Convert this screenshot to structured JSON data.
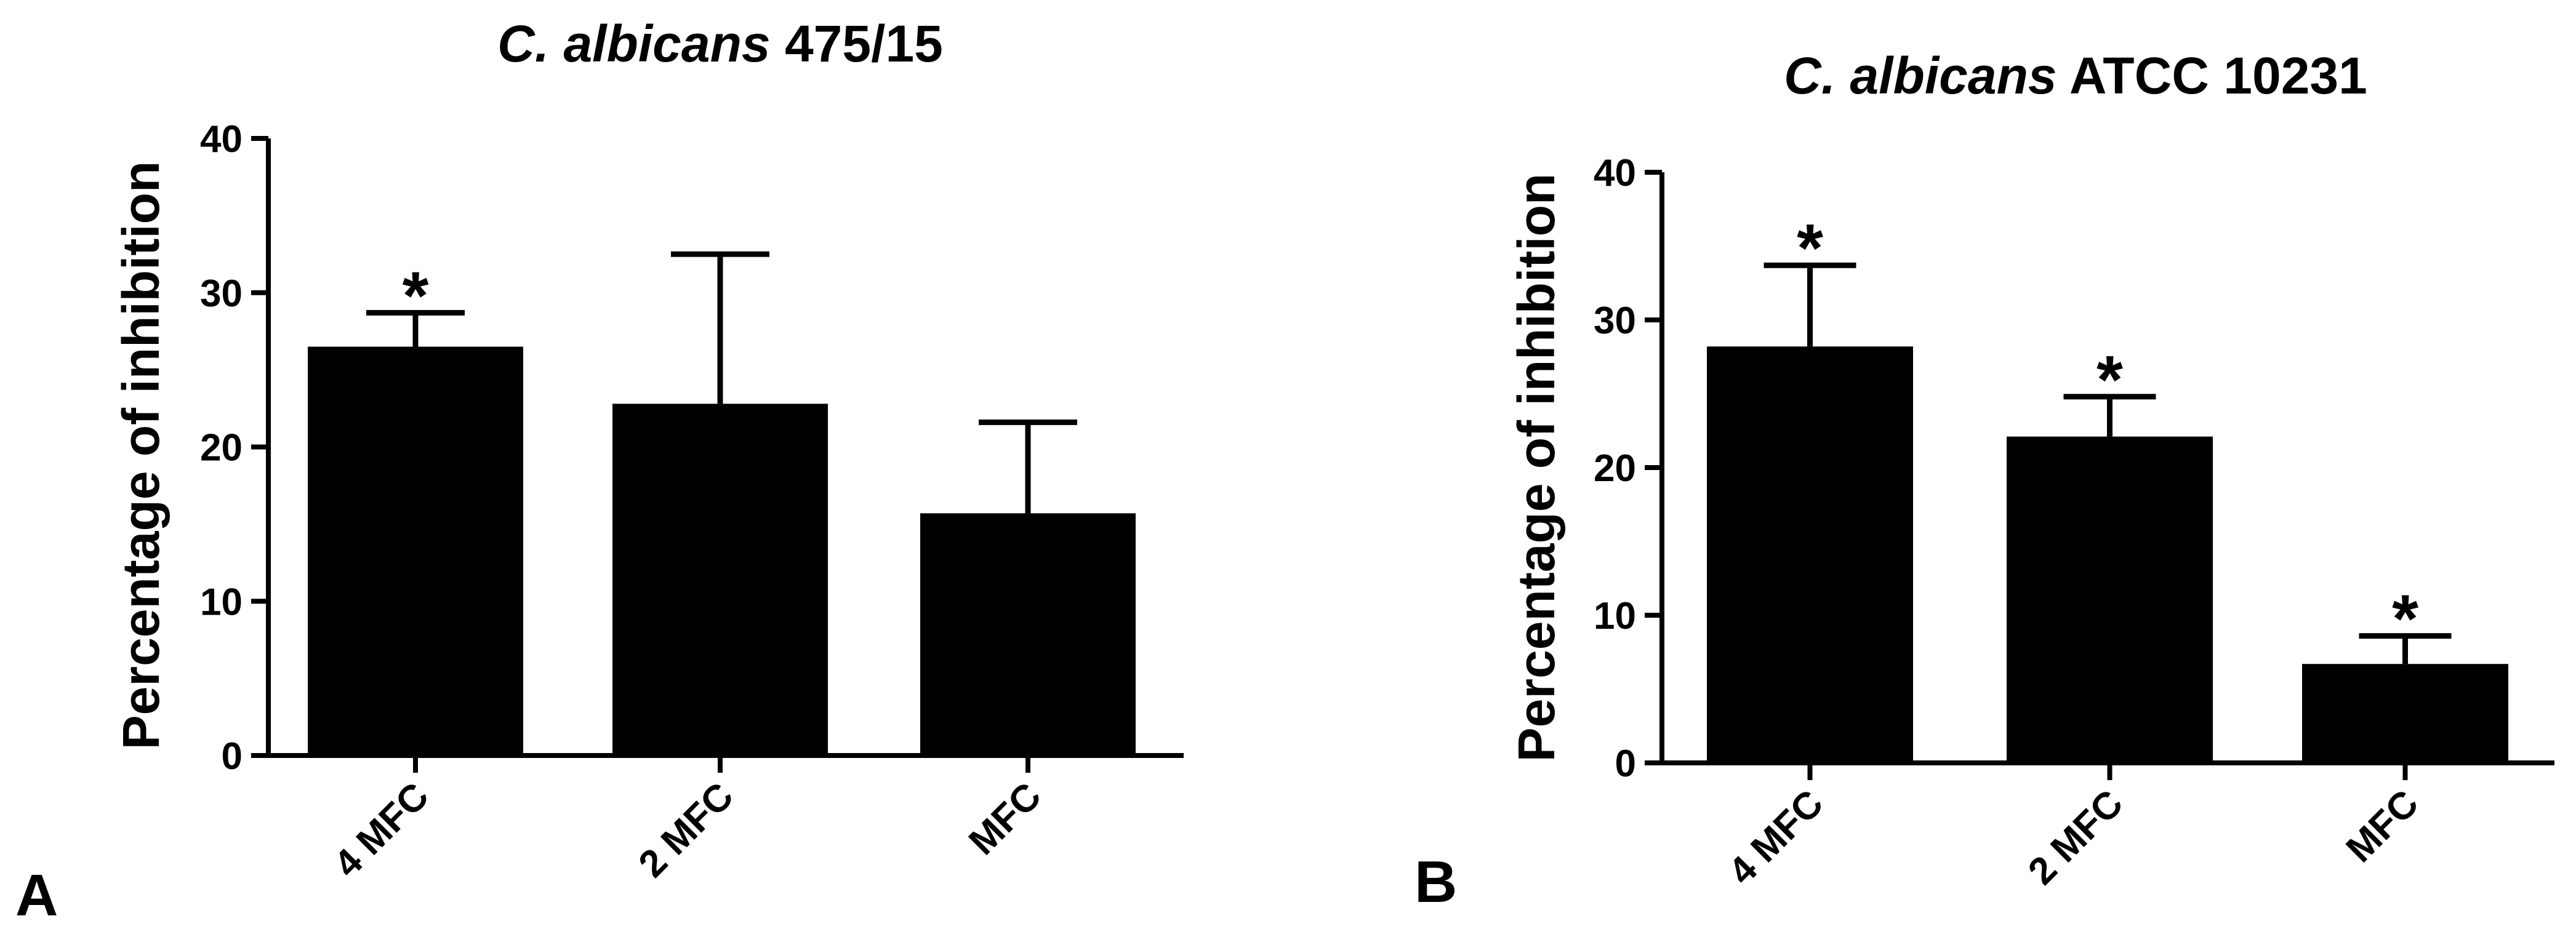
{
  "chart_data": [
    {
      "type": "bar",
      "panel_label": "A",
      "title_italic": "C. albicans",
      "title_rest": "475/15",
      "xlabel": "",
      "ylabel": "Percentage of inhibition",
      "ylim": [
        0,
        40
      ],
      "yticks": [
        "0",
        "10",
        "20",
        "30",
        "40"
      ],
      "categories": [
        "4 MFC",
        "2 MFC",
        "MFC"
      ],
      "values": [
        26.5,
        22.8,
        15.7
      ],
      "errors": [
        2.2,
        9.7,
        5.9
      ],
      "significance": [
        "*",
        "",
        ""
      ],
      "bar_color": "#000000",
      "grid": false,
      "legend": "none"
    },
    {
      "type": "bar",
      "panel_label": "B",
      "title_italic": "C. albicans",
      "title_rest": "ATCC 10231",
      "xlabel": "",
      "ylabel": "Percentage of inhibition",
      "ylim": [
        0,
        40
      ],
      "yticks": [
        "0",
        "10",
        "20",
        "30",
        "40"
      ],
      "categories": [
        "4 MFC",
        "2 MFC",
        "MFC"
      ],
      "values": [
        28.2,
        22.1,
        6.7
      ],
      "errors": [
        5.5,
        2.7,
        1.9
      ],
      "significance": [
        "*",
        "*",
        "*"
      ],
      "bar_color": "#000000",
      "grid": false,
      "legend": "none"
    }
  ]
}
